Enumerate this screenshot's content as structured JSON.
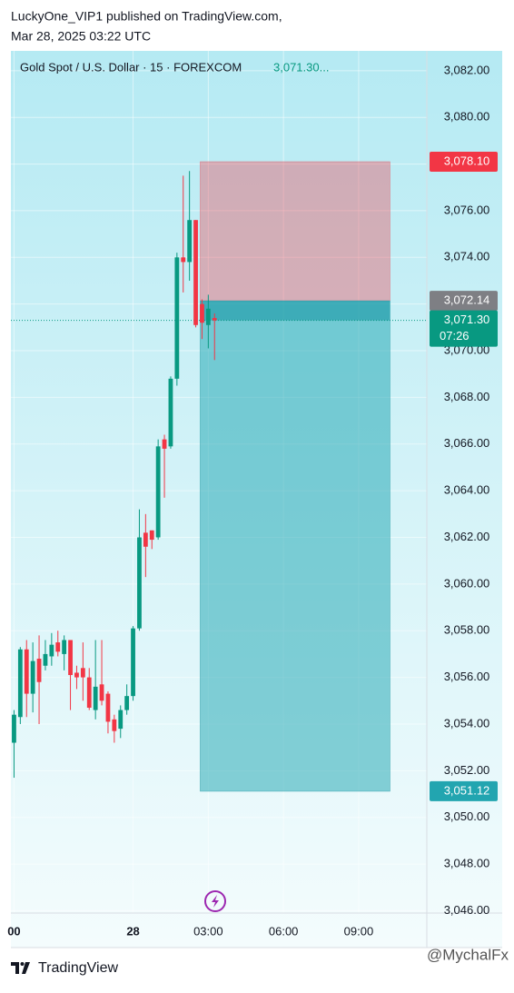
{
  "header": {
    "publisher": "LuckyOne_VIP1 published on TradingView.com,",
    "timestamp": "Mar 28, 2025 03:22 UTC"
  },
  "chart_data": {
    "type": "candlestick",
    "legend": "Gold Spot / U.S. Dollar · 15 · FOREXCOM",
    "legend_price": "3,071.30...",
    "up_color": "#089981",
    "down_color": "#f23645",
    "categories": [
      "00",
      null,
      null,
      null,
      null,
      null,
      null,
      null,
      null,
      null,
      null,
      null,
      null,
      null,
      null,
      null,
      null,
      null,
      null,
      "28",
      null,
      null,
      null,
      null,
      null,
      null,
      null,
      null,
      null,
      null,
      null,
      "03:00",
      null,
      null,
      null,
      null,
      null,
      null,
      null,
      null,
      null,
      null,
      null,
      "06:00",
      null,
      null,
      null,
      null,
      null,
      null,
      null,
      null,
      null,
      null,
      null,
      "09:00",
      null,
      null,
      null,
      null,
      null,
      null,
      null,
      null,
      null,
      null
    ],
    "open": [
      3053.2,
      3054.3,
      3057.2,
      3055.3,
      3056.8,
      3056.5,
      3056.9,
      3057.5,
      3057.0,
      3057.6,
      3056.2,
      3056.4,
      3056.0,
      3054.6,
      3055.7,
      3055.3,
      3054.2,
      3053.8,
      3054.6,
      3055.2,
      3058.1,
      3062.2,
      3062.3,
      3062.0,
      3066.2,
      3065.9,
      3068.8,
      3074.0,
      3073.8,
      3075.6,
      3072.0,
      3071.1,
      3071.4,
      null,
      null,
      null,
      null,
      null,
      null,
      null,
      null,
      null,
      null,
      null,
      null,
      null,
      null,
      null,
      null,
      null,
      null,
      null,
      null,
      null,
      null,
      null,
      null,
      null,
      null,
      null,
      null,
      null,
      null,
      null,
      null,
      null
    ],
    "high": [
      3054.6,
      3057.3,
      3057.6,
      3057.5,
      3057.8,
      3057.6,
      3057.9,
      3058.0,
      3057.8,
      3057.6,
      3056.5,
      3057.5,
      3056.4,
      3057.6,
      3057.6,
      3055.4,
      3054.4,
      3054.8,
      3055.7,
      3058.2,
      3063.2,
      3063.0,
      3062.3,
      3066.2,
      3066.4,
      3068.9,
      3074.2,
      3077.5,
      3077.7,
      3075.6,
      3072.2,
      3072.4,
      3071.6,
      null,
      null,
      null,
      null,
      null,
      null,
      null,
      null,
      null,
      null,
      null,
      null,
      null,
      null,
      null,
      null,
      null,
      null,
      null,
      null,
      null,
      null,
      null,
      null,
      null,
      null,
      null,
      null,
      null,
      null,
      null,
      null,
      null
    ],
    "low": [
      3051.7,
      3054.0,
      3054.3,
      3054.5,
      3054.0,
      3056.3,
      3056.5,
      3056.9,
      3056.3,
      3054.6,
      3055.5,
      3055.0,
      3054.6,
      3054.2,
      3054.8,
      3053.6,
      3053.2,
      3053.4,
      3054.4,
      3055.0,
      3058.0,
      3060.3,
      3061.5,
      3061.9,
      3063.7,
      3065.8,
      3068.5,
      3072.5,
      3073.0,
      3071.0,
      3070.5,
      3070.1,
      3069.6,
      null,
      null,
      null,
      null,
      null,
      null,
      null,
      null,
      null,
      null,
      null,
      null,
      null,
      null,
      null,
      null,
      null,
      null,
      null,
      null,
      null,
      null,
      null,
      null,
      null,
      null,
      null,
      null,
      null,
      null,
      null,
      null,
      null
    ],
    "close": [
      3054.4,
      3057.2,
      3055.3,
      3056.7,
      3055.8,
      3057.0,
      3057.4,
      3057.1,
      3057.6,
      3056.1,
      3056.0,
      3056.0,
      3054.7,
      3055.6,
      3055.0,
      3054.1,
      3053.7,
      3054.6,
      3055.2,
      3058.1,
      3062.0,
      3061.6,
      3061.9,
      3065.9,
      3065.8,
      3068.8,
      3074.0,
      3073.8,
      3075.6,
      3071.1,
      3071.2,
      3071.8,
      3071.3,
      null,
      null,
      null,
      null,
      null,
      null,
      null,
      null,
      null,
      null,
      null,
      null,
      null,
      null,
      null,
      null,
      null,
      null,
      null,
      null,
      null,
      null,
      null,
      null,
      null,
      null,
      null,
      null,
      null,
      null,
      null,
      null,
      null
    ],
    "ylim": [
      3045.9,
      3082.85
    ],
    "yticks": [
      {
        "value": 3046,
        "label": "3,046.00"
      },
      {
        "value": 3048,
        "label": "3,048.00"
      },
      {
        "value": 3050,
        "label": "3,050.00"
      },
      {
        "value": 3052,
        "label": "3,052.00"
      },
      {
        "value": 3054,
        "label": "3,054.00"
      },
      {
        "value": 3056,
        "label": "3,056.00"
      },
      {
        "value": 3058,
        "label": "3,058.00"
      },
      {
        "value": 3060,
        "label": "3,060.00"
      },
      {
        "value": 3062,
        "label": "3,062.00"
      },
      {
        "value": 3064,
        "label": "3,064.00"
      },
      {
        "value": 3066,
        "label": "3,066.00"
      },
      {
        "value": 3068,
        "label": "3,068.00"
      },
      {
        "value": 3070,
        "label": "3,070.00"
      },
      {
        "value": 3072,
        "label": "3,072.00"
      },
      {
        "value": 3074,
        "label": "3,074.00"
      },
      {
        "value": 3076,
        "label": "3,076.00"
      },
      {
        "value": 3078,
        "label": "3,078.00"
      },
      {
        "value": 3080,
        "label": "3,080.00"
      },
      {
        "value": 3082,
        "label": "3,082.00"
      }
    ],
    "grid": true,
    "position": {
      "entry": {
        "value": 3072.14,
        "label": "3,072.14"
      },
      "stop": {
        "value": 3078.1,
        "label": "3,078.10"
      },
      "target": {
        "value": 3051.12,
        "label": "3,051.12"
      }
    },
    "last_price": {
      "value": 3071.3,
      "label": "3,071.30"
    },
    "countdown": "07:26"
  },
  "footer": {
    "brand": "TradingView",
    "watermark": "@MychalFx"
  }
}
